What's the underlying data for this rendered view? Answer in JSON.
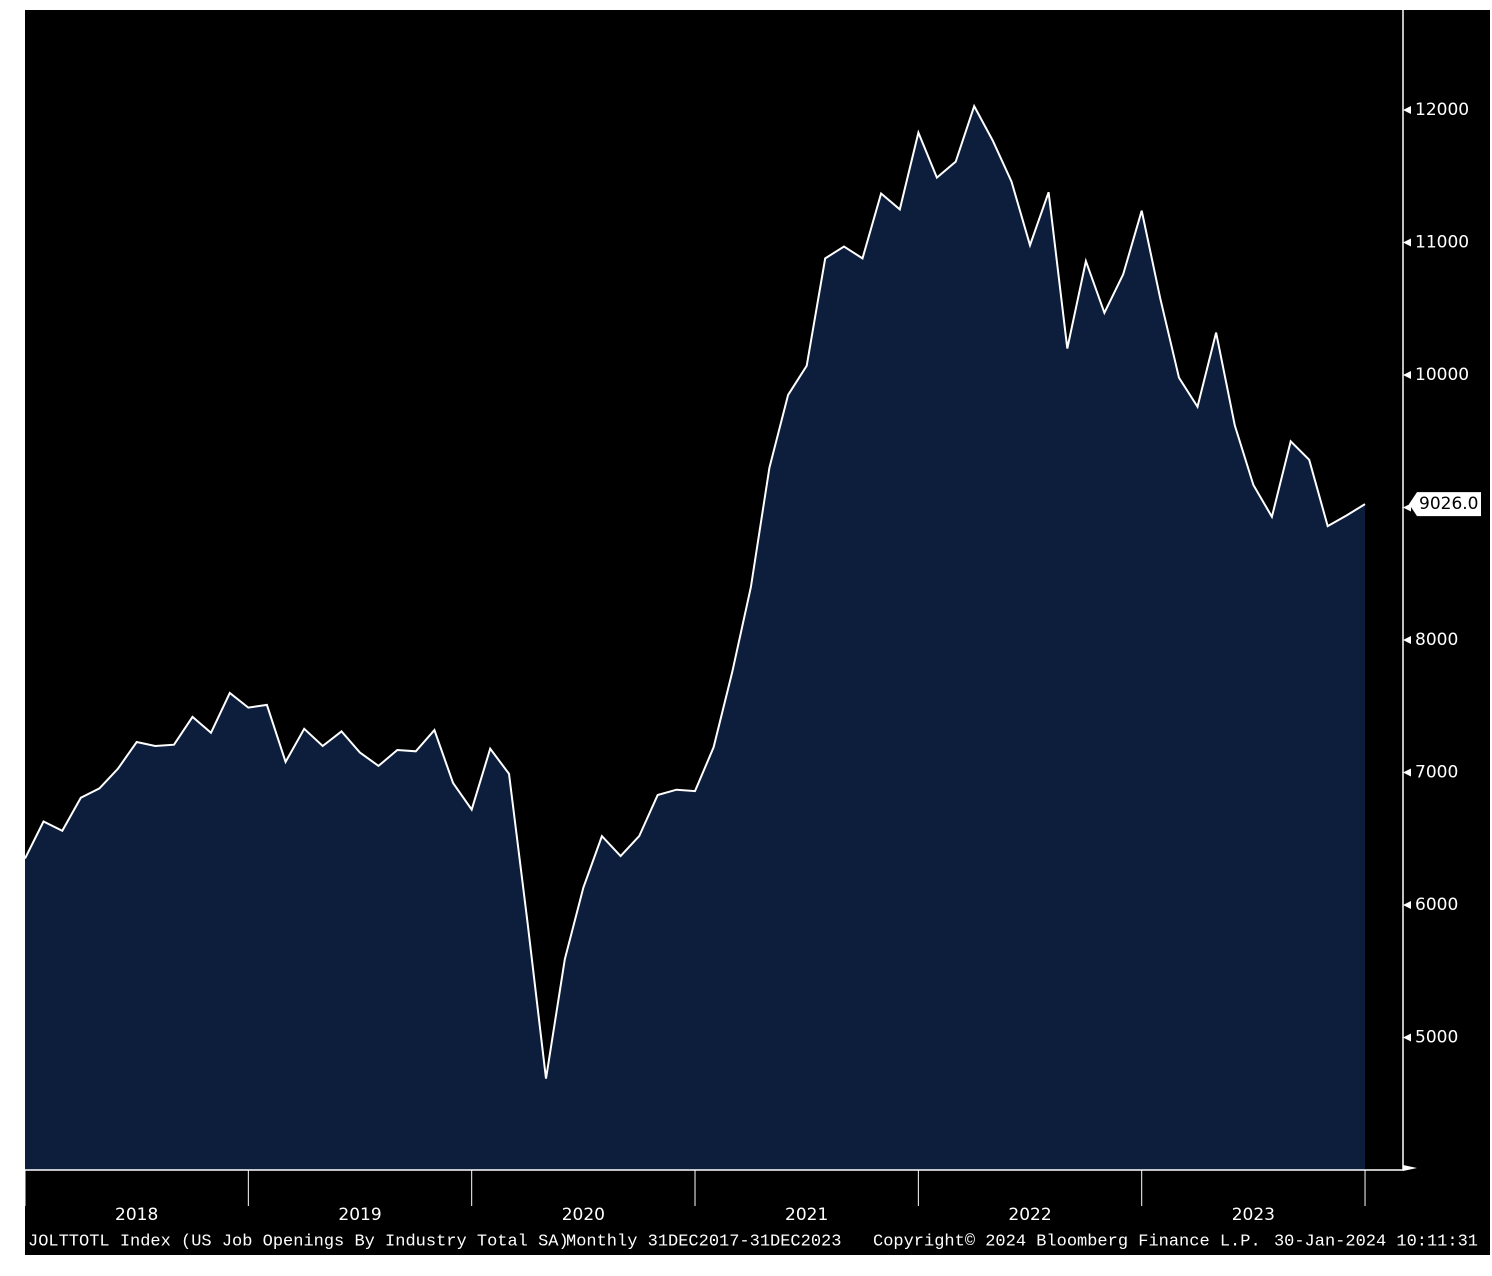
{
  "chart_data": {
    "type": "area",
    "title": "JOLTTOTL Index (US Job Openings By Industry Total SA)",
    "frequency": "Monthly 31DEC2017-31DEC2023",
    "copyright": "Copyright© 2024 Bloomberg Finance L.P.",
    "timestamp": "30-Jan-2024 10:11:31",
    "x": [
      2018,
      2018.083,
      2018.167,
      2018.25,
      2018.333,
      2018.417,
      2018.5,
      2018.583,
      2018.667,
      2018.75,
      2018.833,
      2018.917,
      2019,
      2019.083,
      2019.167,
      2019.25,
      2019.333,
      2019.417,
      2019.5,
      2019.583,
      2019.667,
      2019.75,
      2019.833,
      2019.917,
      2020,
      2020.083,
      2020.167,
      2020.25,
      2020.333,
      2020.417,
      2020.5,
      2020.583,
      2020.667,
      2020.75,
      2020.833,
      2020.917,
      2021,
      2021.083,
      2021.167,
      2021.25,
      2021.333,
      2021.417,
      2021.5,
      2021.583,
      2021.667,
      2021.75,
      2021.833,
      2021.917,
      2022,
      2022.083,
      2022.167,
      2022.25,
      2022.333,
      2022.417,
      2022.5,
      2022.583,
      2022.667,
      2022.75,
      2022.833,
      2022.917,
      2023,
      2023.083,
      2023.167,
      2023.25,
      2023.333,
      2023.417,
      2023.5,
      2023.583,
      2023.667,
      2023.75,
      2023.833,
      2023.917,
      2024
    ],
    "values": [
      6350,
      6630,
      6560,
      6810,
      6880,
      7030,
      7230,
      7200,
      7210,
      7420,
      7300,
      7600,
      7490,
      7510,
      7080,
      7330,
      7200,
      7310,
      7150,
      7050,
      7170,
      7160,
      7320,
      6920,
      6720,
      7180,
      6990,
      5870,
      4690,
      5590,
      6130,
      6520,
      6370,
      6520,
      6830,
      6870,
      6860,
      7190,
      7760,
      8400,
      9300,
      9850,
      10070,
      10880,
      10970,
      10880,
      11370,
      11250,
      11830,
      11490,
      11610,
      12030,
      11770,
      11460,
      10980,
      11380,
      10200,
      10860,
      10470,
      10760,
      11240,
      10580,
      9980,
      9760,
      10320,
      9620,
      9170,
      8930,
      9500,
      9360,
      8860,
      8940,
      9026
    ],
    "value_labels": {
      "72": "9026.0"
    },
    "color": "#0c1e3c",
    "line_color": "#ffffff",
    "xlim": [
      2018,
      2024.17
    ],
    "xticks": [
      2018,
      2019,
      2020,
      2021,
      2022,
      2023,
      2024
    ],
    "xtick_labels": [
      {
        "value": 2018.5,
        "label": "2018"
      },
      {
        "value": 2019.5,
        "label": "2019"
      },
      {
        "value": 2020.5,
        "label": "2020"
      },
      {
        "value": 2021.5,
        "label": "2021"
      },
      {
        "value": 2022.5,
        "label": "2022"
      },
      {
        "value": 2023.5,
        "label": "2023"
      }
    ],
    "ylim": [
      4000,
      12740
    ],
    "yticks": [
      5000,
      6000,
      7000,
      8000,
      9000,
      10000,
      11000,
      12000
    ],
    "grid": false
  }
}
